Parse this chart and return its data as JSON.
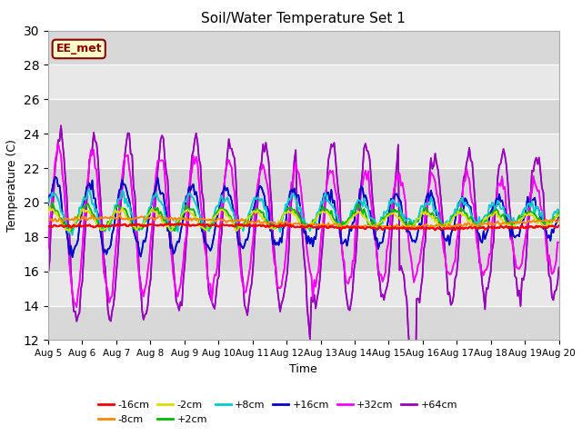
{
  "title": "Soil/Water Temperature Set 1",
  "xlabel": "Time",
  "ylabel": "Temperature (C)",
  "ylim": [
    12,
    30
  ],
  "yticks": [
    12,
    14,
    16,
    18,
    20,
    22,
    24,
    26,
    28,
    30
  ],
  "xtick_labels": [
    "Aug 5",
    "Aug 6",
    "Aug 7",
    "Aug 8",
    "Aug 9",
    "Aug 10",
    "Aug 11",
    "Aug 12",
    "Aug 13",
    "Aug 14",
    "Aug 15",
    "Aug 16",
    "Aug 17",
    "Aug 18",
    "Aug 19",
    "Aug 20"
  ],
  "annotation_text": "EE_met",
  "annotation_bg": "#ffffcc",
  "annotation_border": "#8B0000",
  "annotation_text_color": "#8B0000",
  "colors": {
    "-16cm": "#ff0000",
    "-8cm": "#ff8800",
    "-2cm": "#dddd00",
    "+2cm": "#00bb00",
    "+8cm": "#00cccc",
    "+16cm": "#0000cc",
    "+32cm": "#ff00ff",
    "+64cm": "#9900bb"
  },
  "fig_bg": "#ffffff",
  "plot_bg": "#e8e8e8",
  "grid_color": "#ffffff",
  "base_temp": 18.6
}
